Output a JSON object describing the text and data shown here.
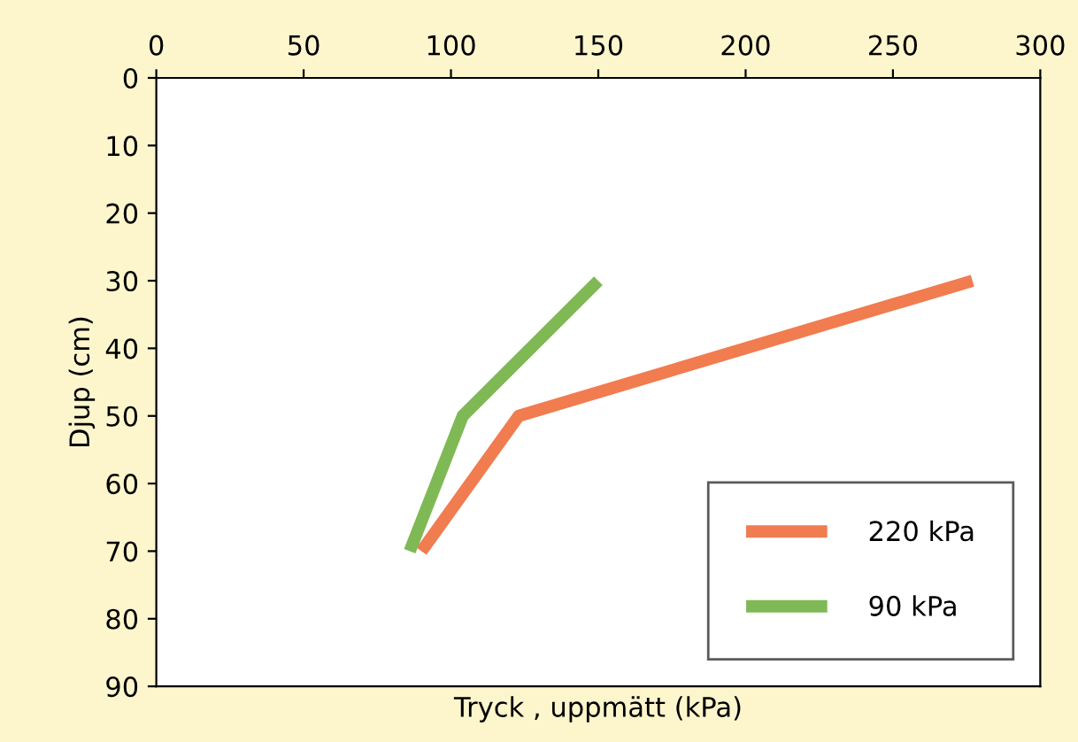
{
  "chart_data": {
    "type": "line",
    "xlabel": "Tryck , uppmätt (kPa)",
    "ylabel": "Djup (cm)",
    "xlim": [
      0,
      300
    ],
    "xticks": [
      0,
      50,
      100,
      150,
      200,
      250,
      300
    ],
    "ylim": [
      90,
      0
    ],
    "yticks": [
      0,
      10,
      20,
      30,
      40,
      50,
      60,
      70,
      80,
      90
    ],
    "legend": "bottom right",
    "grid": false,
    "marker": "none",
    "line_style": "solid",
    "series": [
      {
        "name": "220 kPa",
        "color": "#f07c50",
        "x": [
          277,
          123,
          90
        ],
        "values": [
          30,
          50,
          70
        ]
      },
      {
        "name": "90 kPa",
        "color": "#7fb956",
        "x": [
          150,
          104,
          86
        ],
        "values": [
          30,
          50,
          70
        ]
      }
    ]
  }
}
